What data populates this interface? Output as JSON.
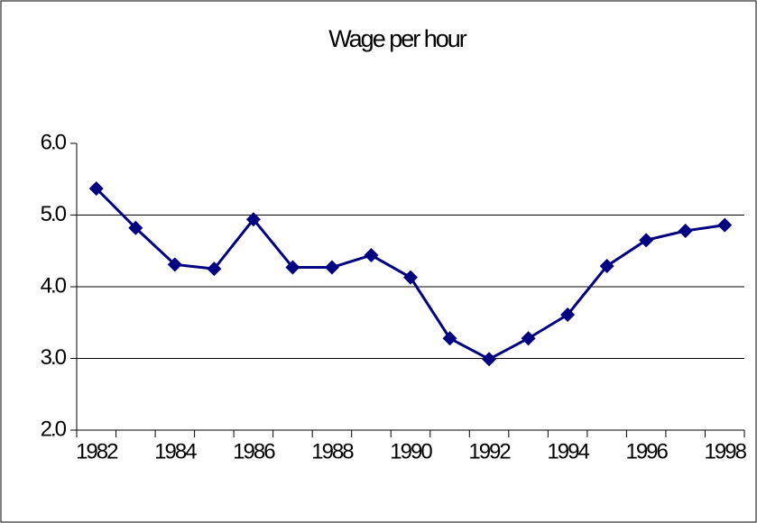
{
  "chart_data": {
    "type": "line",
    "title": "Wage per hour",
    "categories": [
      "1982",
      null,
      "1984",
      null,
      "1986",
      null,
      "1988",
      null,
      "1990",
      null,
      "1992",
      null,
      "1994",
      null,
      "1996",
      null,
      "1998"
    ],
    "values": [
      5.37,
      4.82,
      4.31,
      4.25,
      4.94,
      4.27,
      4.27,
      4.44,
      4.13,
      3.28,
      2.99,
      3.28,
      3.61,
      4.29,
      4.65,
      4.78,
      4.86
    ],
    "color": "#000080",
    "ylim": [
      2,
      6
    ],
    "yticks": [
      {
        "value": 2,
        "label": "2.0"
      },
      {
        "value": 3,
        "label": "3.0"
      },
      {
        "value": 4,
        "label": "4.0"
      },
      {
        "value": 5,
        "label": "5.0"
      },
      {
        "value": 6,
        "label": "6.0"
      }
    ],
    "grid": true
  }
}
